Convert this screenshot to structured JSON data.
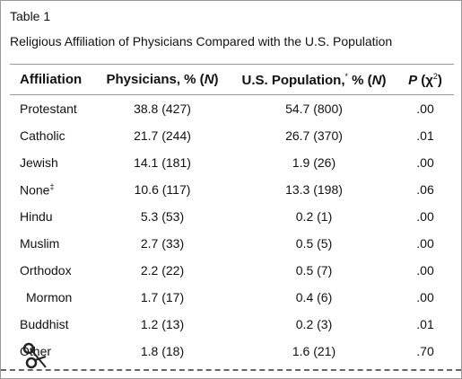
{
  "header": {
    "label": "Table 1",
    "title": "Religious Affiliation of Physicians Compared with the U.S. Population"
  },
  "table": {
    "columns": [
      [
        "Affiliation"
      ],
      [
        "Physicians, % (",
        "N",
        ")"
      ],
      [
        "U.S. Population,",
        "*",
        " % (",
        "N",
        ")"
      ],
      [
        "P",
        " (χ",
        "2",
        ")"
      ]
    ],
    "rows": [
      {
        "name": "Protestant",
        "values": [
          "38.8 (427)",
          "54.7 (800)",
          ".00"
        ]
      },
      {
        "name": "Catholic",
        "values": [
          "21.7 (244)",
          "26.7 (370)",
          ".01"
        ]
      },
      {
        "name": "Jewish",
        "values": [
          "14.1 (181)",
          "1.9 (26)",
          ".00"
        ]
      },
      {
        "name": "None",
        "mark": "‡",
        "values": [
          "10.6 (117)",
          "13.3 (198)",
          ".06"
        ]
      },
      {
        "name": "Hindu",
        "values": [
          "5.3 (53)",
          "0.2 (1)",
          ".00"
        ]
      },
      {
        "name": "Muslim",
        "values": [
          "2.7 (33)",
          "0.5 (5)",
          ".00"
        ]
      },
      {
        "name": "Orthodox",
        "values": [
          "2.2 (22)",
          "0.5 (7)",
          ".00"
        ]
      },
      {
        "name": "Mormon",
        "indent": true,
        "values": [
          "1.7 (17)",
          "0.4 (6)",
          ".00"
        ]
      },
      {
        "name": "Buddhist",
        "values": [
          "1.2 (13)",
          "0.2 (3)",
          ".01"
        ]
      },
      {
        "name": "Other",
        "values": [
          "1.8 (18)",
          "1.6 (21)",
          ".70"
        ]
      }
    ]
  }
}
